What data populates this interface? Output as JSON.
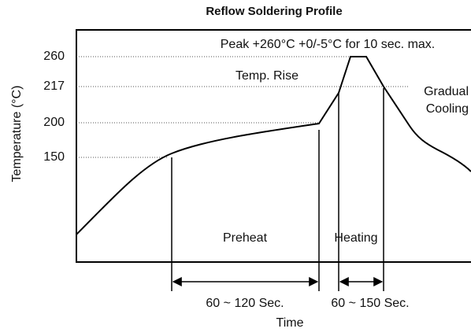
{
  "title": "Reflow Soldering Profile",
  "y_axis": {
    "label": "Temperature (°C)",
    "ticks": [
      "260",
      "217",
      "200",
      "150"
    ]
  },
  "x_axis": {
    "label": "Time"
  },
  "annotations": {
    "peak": "Peak +260°C +0/-5°C for 10 sec. max.",
    "temp_rise": "Temp. Rise",
    "cooling": [
      "Gradual",
      "Cooling"
    ],
    "preheat": "Preheat",
    "heating": "Heating"
  },
  "durations": {
    "preheat": "60 ~ 120 Sec.",
    "heating": "60 ~ 150 Sec."
  }
}
